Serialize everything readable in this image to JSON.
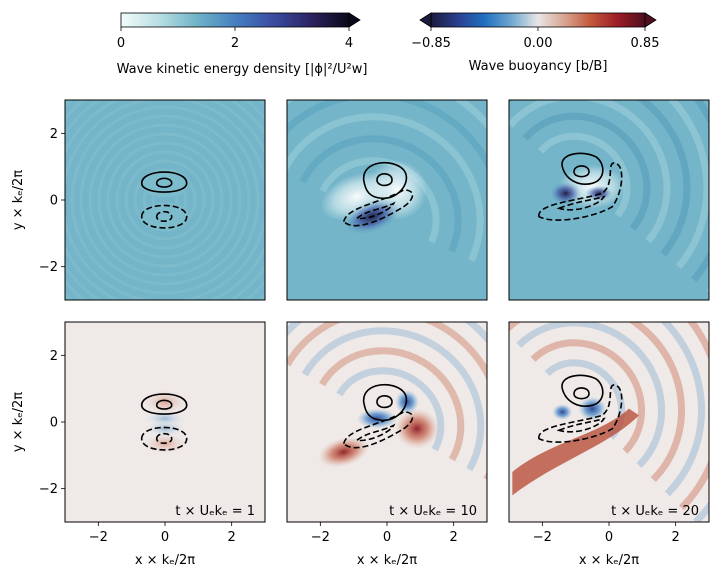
{
  "colorbars": {
    "energy": {
      "label": "Wave kinetic energy density [|ϕ|²/U²w]",
      "ticks": [
        "0",
        "2",
        "4"
      ],
      "tick_values": [
        0,
        2,
        4
      ],
      "range": [
        0,
        4
      ],
      "colors": [
        "#f4fbfb",
        "#b8dfe3",
        "#6fb3c8",
        "#4680c0",
        "#3a4da3",
        "#2c2360",
        "#080818"
      ]
    },
    "buoyancy": {
      "label": "Wave buoyancy [b/B]",
      "ticks": [
        "−0.85",
        "0.00",
        "0.85"
      ],
      "tick_values": [
        -0.85,
        0,
        0.85
      ],
      "range": [
        -0.85,
        0.85
      ],
      "colors": [
        "#1c1c3c",
        "#2b3f8f",
        "#1f6fc0",
        "#6fa7cf",
        "#e8e6e6",
        "#d7a48f",
        "#c2553a",
        "#9a1d27",
        "#4e0f1e"
      ]
    }
  },
  "axes": {
    "xlabel": "x × kₑ/2π",
    "ylabel": "y × kₑ/2π",
    "xlim": [
      -3,
      3
    ],
    "ylim": [
      -3,
      3
    ],
    "x_ticks": [
      "−2",
      "0",
      "2"
    ],
    "y_ticks": [
      "−2",
      "0",
      "2"
    ],
    "tick_values": [
      -2,
      0,
      2
    ]
  },
  "time_labels": [
    "t × Uₑkₑ = 1",
    "t × Uₑkₑ = 10",
    "t × Uₑkₑ = 20"
  ],
  "chart_data": {
    "type": "heatmap",
    "panels": [
      {
        "row": "energy",
        "time": 1,
        "field": "wave kinetic energy density",
        "background": 0.6
      },
      {
        "row": "energy",
        "time": 10,
        "field": "wave kinetic energy density",
        "background": 0.6
      },
      {
        "row": "energy",
        "time": 20,
        "field": "wave kinetic energy density",
        "background": 0.6
      },
      {
        "row": "buoyancy",
        "time": 1,
        "field": "wave buoyancy",
        "background": 0.0
      },
      {
        "row": "buoyancy",
        "time": 10,
        "field": "wave buoyancy",
        "background": 0.0
      },
      {
        "row": "buoyancy",
        "time": 20,
        "field": "wave buoyancy",
        "background": 0.0
      }
    ],
    "vorticity_contours": {
      "positive": "solid",
      "negative": "dashed"
    }
  }
}
